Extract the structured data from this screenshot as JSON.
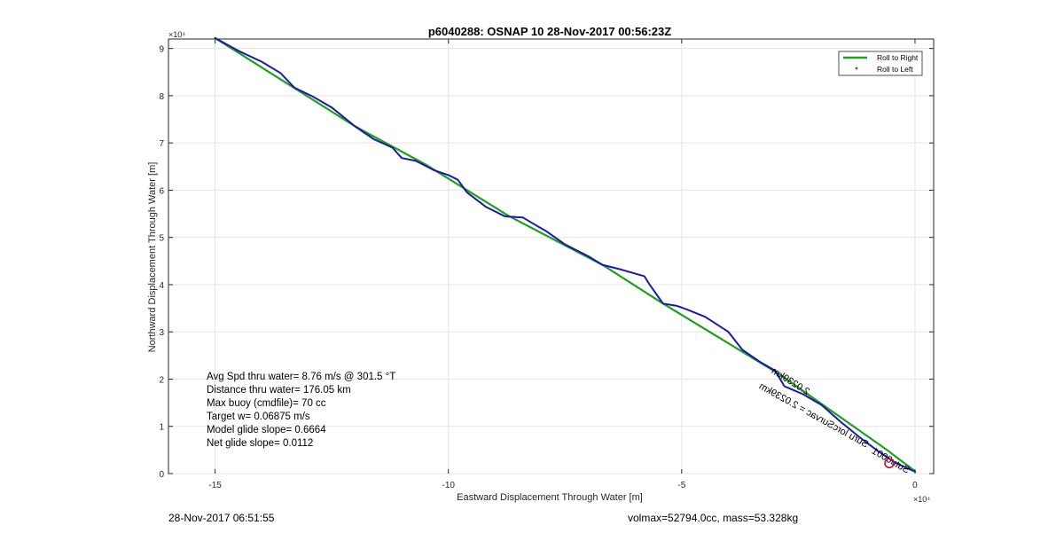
{
  "chart_data": {
    "type": "line",
    "title": "p6040288: OSNAP 10 28-Nov-2017 00:56:23Z",
    "xlabel": "Eastward Displacement Through Water [m]",
    "ylabel": "Northward Displacement Through Water [m]",
    "x_exponent_label": "×10⁴",
    "y_exponent_label": "×10⁴",
    "xlim": [
      -16,
      0.4
    ],
    "ylim": [
      0,
      92
    ],
    "x_ticks": [
      -15,
      -10,
      -5,
      0
    ],
    "x_tick_labels": [
      "-15",
      "-10",
      "-5",
      "0"
    ],
    "y_ticks": [
      0,
      1,
      2,
      3,
      4,
      5,
      6,
      7,
      8,
      9
    ],
    "y_tick_labels": [
      "0",
      "1",
      "2",
      "3",
      "4",
      "5",
      "6",
      "7",
      "8",
      "9"
    ],
    "grid": true,
    "legend_position": "top-right",
    "legend": [
      {
        "name": "Roll to Right",
        "color": "#1ea11e",
        "style": "line"
      },
      {
        "name": "Roll to Left",
        "color": "#d62728",
        "style": "dot"
      }
    ],
    "series": [
      {
        "name": "Roll to Right",
        "color": "#1ea11e",
        "x": [
          -15.0,
          -12.0,
          -10.5,
          -8.7,
          -6.7,
          -5.4,
          -2.9,
          -0.6,
          0.0
        ],
        "y": [
          9.22,
          7.35,
          6.55,
          5.45,
          4.42,
          3.6,
          2.1,
          0.5,
          0.05
        ]
      },
      {
        "name": "track",
        "color": "#1a1aa6",
        "x": [
          -15.0,
          -14.5,
          -14.0,
          -13.6,
          -13.3,
          -12.9,
          -12.5,
          -12.0,
          -11.6,
          -11.2,
          -11.0,
          -10.7,
          -10.3,
          -10.0,
          -9.8,
          -9.6,
          -9.2,
          -8.8,
          -8.7,
          -8.4,
          -8.2,
          -7.9,
          -7.5,
          -7.0,
          -6.7,
          -6.3,
          -5.8,
          -5.7,
          -5.4,
          -5.1,
          -4.9,
          -4.5,
          -4.0,
          -3.7,
          -3.3,
          -3.0,
          -2.8,
          -2.4,
          -2.0,
          -1.6,
          -1.2,
          -0.8,
          -0.4,
          0.0
        ],
        "y": [
          9.22,
          8.95,
          8.72,
          8.48,
          8.17,
          7.98,
          7.75,
          7.35,
          7.08,
          6.9,
          6.68,
          6.62,
          6.42,
          6.32,
          6.22,
          5.95,
          5.65,
          5.45,
          5.44,
          5.42,
          5.3,
          5.13,
          4.85,
          4.6,
          4.42,
          4.32,
          4.18,
          4.02,
          3.6,
          3.55,
          3.48,
          3.32,
          3.0,
          2.62,
          2.35,
          2.18,
          1.85,
          1.68,
          1.45,
          1.1,
          0.78,
          0.48,
          0.22,
          0.04
        ]
      }
    ],
    "annotations": [
      {
        "text": "2.0239km",
        "x": -2.7,
        "y": 1.9,
        "rotation_deg": -148,
        "mirrored": true
      },
      {
        "text": "Suru lorcSurvac = 2.0239km",
        "x": -2.2,
        "y": 1.18,
        "rotation_deg": -151,
        "mirrored": true
      },
      {
        "text": "Sutu0001",
        "x": -0.55,
        "y": 0.22,
        "rotation_deg": -150,
        "mirrored": true
      }
    ],
    "markers": [
      {
        "name": "start-circle",
        "x": -0.55,
        "y": 0.22,
        "color": "#c0103a"
      }
    ],
    "stats_box": [
      "Avg Spd thru water=  8.76 m/s @ 301.5 °T",
      "Distance thru water= 176.05 km",
      "Max buoy (cmdfile)= 70 cc",
      "Target w= 0.06875 m/s",
      "Model glide slope= 0.6664",
      "Net glide slope= 0.0112"
    ]
  },
  "footer": {
    "left": "28-Nov-2017 06:51:55",
    "right": "volmax=52794.0cc, mass=53.328kg"
  }
}
